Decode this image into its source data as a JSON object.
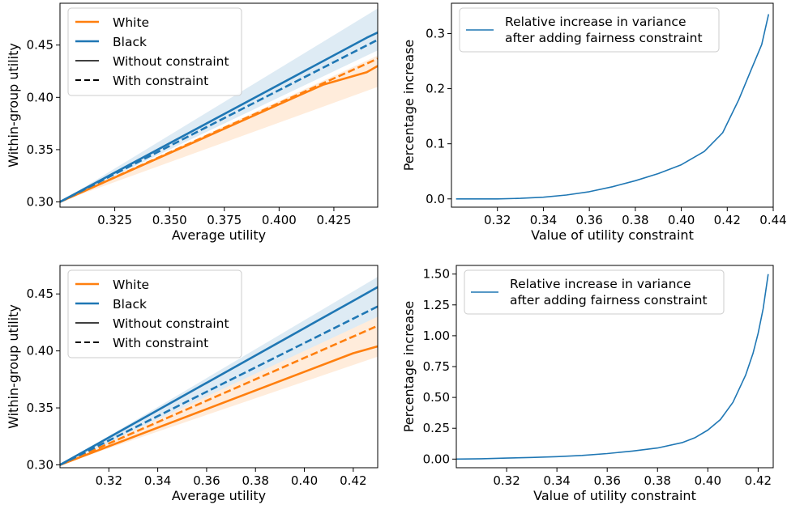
{
  "colors": {
    "white_group": "#ff7f0e",
    "black_group": "#1f77b4",
    "variance_line": "#1f77b4",
    "legend_ref": "#000000"
  },
  "chart_data": [
    {
      "type": "line",
      "panel": "top-left",
      "xlabel": "Average utility",
      "ylabel": "Within-group utility",
      "xlim": [
        0.3,
        0.445
      ],
      "ylim": [
        0.295,
        0.49
      ],
      "xticks": [
        "0.325",
        "0.350",
        "0.375",
        "0.400",
        "0.425"
      ],
      "yticks": [
        "0.30",
        "0.35",
        "0.40",
        "0.45"
      ],
      "grid": false,
      "legend_position": "upper-left",
      "legend": [
        {
          "label": "White",
          "color": "#ff7f0e",
          "style": "solid"
        },
        {
          "label": "Black",
          "color": "#1f77b4",
          "style": "solid"
        },
        {
          "label": "Without constraint",
          "color": "#000000",
          "style": "solid"
        },
        {
          "label": "With constraint",
          "color": "#000000",
          "style": "dashed"
        }
      ],
      "series": [
        {
          "name": "White",
          "group": "White",
          "constraint": "without",
          "x": [
            0.3,
            0.42,
            0.44,
            0.445
          ],
          "y": [
            0.3,
            0.412,
            0.424,
            0.43
          ]
        },
        {
          "name": "Black",
          "group": "Black",
          "constraint": "without",
          "x": [
            0.3,
            0.44,
            0.445
          ],
          "y": [
            0.3,
            0.457,
            0.462
          ]
        },
        {
          "name": "White",
          "group": "White",
          "constraint": "with",
          "x": [
            0.3,
            0.445
          ],
          "y": [
            0.3,
            0.437
          ]
        },
        {
          "name": "Black",
          "group": "Black",
          "constraint": "with",
          "x": [
            0.3,
            0.445
          ],
          "y": [
            0.3,
            0.455
          ]
        }
      ],
      "bands": [
        {
          "group": "Black",
          "x": [
            0.3,
            0.445
          ],
          "upper": [
            0.3,
            0.485
          ],
          "lower": [
            0.3,
            0.445
          ]
        },
        {
          "group": "White",
          "x": [
            0.3,
            0.445
          ],
          "upper": [
            0.3,
            0.44
          ],
          "lower": [
            0.3,
            0.41
          ]
        }
      ]
    },
    {
      "type": "line",
      "panel": "top-right",
      "xlabel": "Value of utility constraint",
      "ylabel": "Percentage increase",
      "xlim": [
        0.3,
        0.44
      ],
      "ylim": [
        -0.015,
        0.355
      ],
      "xticks": [
        "0.32",
        "0.34",
        "0.36",
        "0.38",
        "0.40",
        "0.42",
        "0.44"
      ],
      "yticks": [
        "0.0",
        "0.1",
        "0.2",
        "0.3"
      ],
      "grid": false,
      "legend_position": "upper-left",
      "legend": [
        {
          "label": [
            "Relative increase in variance",
            "after adding fairness constraint"
          ],
          "color": "#1f77b4",
          "style": "solid"
        }
      ],
      "series": [
        {
          "name": "Relative increase in variance after adding fairness constraint",
          "x": [
            0.302,
            0.31,
            0.32,
            0.33,
            0.34,
            0.35,
            0.36,
            0.37,
            0.38,
            0.39,
            0.4,
            0.41,
            0.418,
            0.425,
            0.43,
            0.435,
            0.438
          ],
          "y": [
            0.0,
            0.0,
            0.0,
            0.001,
            0.003,
            0.007,
            0.013,
            0.022,
            0.033,
            0.046,
            0.062,
            0.086,
            0.12,
            0.18,
            0.23,
            0.28,
            0.335
          ]
        }
      ]
    },
    {
      "type": "line",
      "panel": "bottom-left",
      "xlabel": "Average utility",
      "ylabel": "Within-group utility",
      "xlim": [
        0.3,
        0.43
      ],
      "ylim": [
        0.2975,
        0.475
      ],
      "xticks": [
        "0.32",
        "0.34",
        "0.36",
        "0.38",
        "0.40",
        "0.42"
      ],
      "yticks": [
        "0.30",
        "0.35",
        "0.40",
        "0.45"
      ],
      "grid": false,
      "legend_position": "upper-left",
      "legend": [
        {
          "label": "White",
          "color": "#ff7f0e",
          "style": "solid"
        },
        {
          "label": "Black",
          "color": "#1f77b4",
          "style": "solid"
        },
        {
          "label": "Without constraint",
          "color": "#000000",
          "style": "solid"
        },
        {
          "label": "With constraint",
          "color": "#000000",
          "style": "dashed"
        }
      ],
      "series": [
        {
          "name": "White",
          "group": "White",
          "constraint": "without",
          "x": [
            0.3,
            0.42,
            0.43
          ],
          "y": [
            0.3,
            0.398,
            0.404
          ]
        },
        {
          "name": "Black",
          "group": "Black",
          "constraint": "without",
          "x": [
            0.3,
            0.42,
            0.43
          ],
          "y": [
            0.3,
            0.444,
            0.456
          ]
        },
        {
          "name": "White",
          "group": "White",
          "constraint": "with",
          "x": [
            0.3,
            0.43
          ],
          "y": [
            0.3,
            0.422
          ]
        },
        {
          "name": "Black",
          "group": "Black",
          "constraint": "with",
          "x": [
            0.3,
            0.43
          ],
          "y": [
            0.3,
            0.439
          ]
        }
      ],
      "bands": [
        {
          "group": "Black",
          "x": [
            0.3,
            0.43
          ],
          "upper": [
            0.3,
            0.465
          ],
          "lower": [
            0.3,
            0.43
          ]
        },
        {
          "group": "White",
          "x": [
            0.3,
            0.43
          ],
          "upper": [
            0.3,
            0.43
          ],
          "lower": [
            0.3,
            0.395
          ]
        }
      ]
    },
    {
      "type": "line",
      "panel": "bottom-right",
      "xlabel": "Value of utility constraint",
      "ylabel": "Percentage increase",
      "xlim": [
        0.3,
        0.426
      ],
      "ylim": [
        -0.07,
        1.57
      ],
      "xticks": [
        "0.32",
        "0.34",
        "0.36",
        "0.38",
        "0.40",
        "0.42"
      ],
      "yticks": [
        "0.00",
        "0.25",
        "0.50",
        "0.75",
        "1.00",
        "1.25",
        "1.50"
      ],
      "grid": false,
      "legend_position": "upper-left",
      "legend": [
        {
          "label": [
            "Relative increase in variance",
            "after adding fairness constraint"
          ],
          "color": "#1f77b4",
          "style": "solid"
        }
      ],
      "series": [
        {
          "name": "Relative increase in variance after adding fairness constraint",
          "x": [
            0.3,
            0.31,
            0.32,
            0.33,
            0.34,
            0.35,
            0.36,
            0.37,
            0.38,
            0.39,
            0.395,
            0.4,
            0.405,
            0.41,
            0.415,
            0.418,
            0.42,
            0.422,
            0.424
          ],
          "y": [
            0.0,
            0.003,
            0.008,
            0.013,
            0.02,
            0.03,
            0.045,
            0.065,
            0.09,
            0.135,
            0.175,
            0.235,
            0.32,
            0.46,
            0.68,
            0.86,
            1.02,
            1.22,
            1.5
          ]
        }
      ]
    }
  ]
}
